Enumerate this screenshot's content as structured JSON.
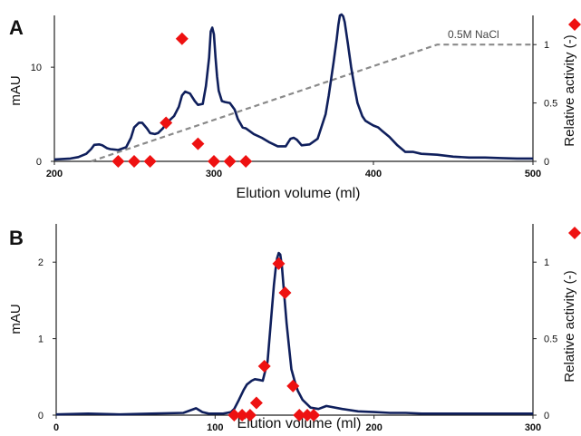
{
  "chart_data": [
    {
      "panel": "A",
      "type": "line",
      "xlabel": "Elution volume (ml)",
      "ylabel": "mAU",
      "y2label": "Relative activity (-)",
      "xlim": [
        200,
        500
      ],
      "xticks": [
        "200",
        "300",
        "400",
        "500"
      ],
      "ylim": [
        0,
        15.5
      ],
      "yticks": [
        "0",
        "10"
      ],
      "y2lim": [
        0,
        1.25
      ],
      "y2ticks": [
        "0",
        "0.5",
        "1"
      ],
      "annotation": "0.5M NaCl",
      "colors": {
        "trace": "#0f1f5c",
        "activity": "#ee1111",
        "gradient": "#8a8a8a"
      },
      "series": [
        {
          "kind": "absorbance-trace",
          "x": [
            200,
            210,
            215,
            220,
            223,
            225,
            228,
            230,
            233,
            235,
            240,
            245,
            248,
            250,
            253,
            255,
            258,
            260,
            263,
            265,
            268,
            270,
            273,
            275,
            278,
            280,
            282,
            285,
            288,
            290,
            293,
            295,
            297,
            298,
            299,
            300,
            301,
            302,
            303,
            305,
            307,
            310,
            313,
            315,
            318,
            320,
            325,
            330,
            335,
            340,
            345,
            348,
            350,
            352,
            355,
            360,
            365,
            370,
            372,
            375,
            377,
            378,
            379,
            380,
            381,
            382,
            384,
            386,
            388,
            390,
            393,
            395,
            398,
            400,
            403,
            405,
            410,
            415,
            420,
            425,
            430,
            440,
            450,
            460,
            470,
            480,
            490,
            500
          ],
          "y": [
            0.2,
            0.3,
            0.45,
            0.8,
            1.3,
            1.75,
            1.8,
            1.7,
            1.4,
            1.3,
            1.2,
            1.5,
            2.5,
            3.6,
            4.1,
            4.1,
            3.5,
            3.0,
            2.9,
            3.0,
            3.5,
            4.0,
            4.5,
            4.8,
            5.8,
            7.0,
            7.4,
            7.2,
            6.4,
            6.0,
            6.1,
            8.0,
            11.0,
            13.8,
            14.2,
            13.5,
            11.0,
            9.0,
            7.5,
            6.4,
            6.3,
            6.2,
            5.5,
            4.5,
            3.6,
            3.5,
            2.9,
            2.5,
            2.0,
            1.6,
            1.6,
            2.4,
            2.5,
            2.3,
            1.7,
            1.8,
            2.4,
            5.0,
            7.0,
            10.5,
            13.0,
            14.5,
            15.5,
            15.6,
            15.4,
            14.8,
            12.5,
            10.0,
            8.0,
            6.2,
            4.8,
            4.3,
            4.0,
            3.8,
            3.6,
            3.3,
            2.6,
            1.7,
            1.0,
            1.0,
            0.8,
            0.7,
            0.5,
            0.4,
            0.4,
            0.35,
            0.3,
            0.3
          ]
        },
        {
          "kind": "relative-activity",
          "x": [
            240,
            250,
            260,
            270,
            280,
            290,
            300,
            310,
            320
          ],
          "y": [
            0.0,
            0.0,
            0.0,
            0.33,
            1.05,
            0.15,
            0.0,
            0.0,
            0.0
          ]
        },
        {
          "kind": "salt-gradient",
          "x": [
            223,
            440,
            500
          ],
          "y": [
            0.0,
            1.0,
            1.0
          ]
        }
      ]
    },
    {
      "panel": "B",
      "type": "line",
      "xlabel": "Elution volume (ml)",
      "ylabel": "mAU",
      "y2label": "Relative activity (-)",
      "xlim": [
        0,
        300
      ],
      "xticks": [
        "0",
        "100",
        "200",
        "300"
      ],
      "ylim": [
        0,
        2.5
      ],
      "yticks": [
        "0",
        "1",
        "2"
      ],
      "y2lim": [
        0,
        1.25
      ],
      "y2ticks": [
        "0",
        "0.5",
        "1"
      ],
      "colors": {
        "trace": "#0f1f5c",
        "activity": "#ee1111"
      },
      "series": [
        {
          "kind": "absorbance-trace",
          "x": [
            0,
            20,
            40,
            60,
            80,
            88,
            92,
            96,
            100,
            105,
            110,
            112,
            115,
            118,
            120,
            123,
            125,
            128,
            130,
            133,
            135,
            137,
            138,
            139,
            140,
            141,
            142,
            143,
            145,
            147,
            148,
            150,
            152,
            155,
            160,
            165,
            170,
            180,
            190,
            200,
            210,
            220,
            230,
            240,
            250,
            260,
            270,
            280,
            290,
            300
          ],
          "y": [
            0.01,
            0.02,
            0.01,
            0.02,
            0.03,
            0.09,
            0.04,
            0.02,
            0.02,
            0.02,
            0.04,
            0.08,
            0.2,
            0.33,
            0.4,
            0.45,
            0.47,
            0.46,
            0.45,
            0.7,
            1.2,
            1.7,
            1.9,
            2.05,
            2.12,
            2.1,
            1.95,
            1.7,
            1.2,
            0.8,
            0.6,
            0.45,
            0.32,
            0.2,
            0.1,
            0.08,
            0.12,
            0.08,
            0.05,
            0.04,
            0.03,
            0.03,
            0.02,
            0.02,
            0.02,
            0.02,
            0.02,
            0.02,
            0.02,
            0.02
          ]
        },
        {
          "kind": "relative-activity",
          "x": [
            112,
            117,
            122,
            126,
            131,
            140,
            144,
            149,
            153,
            158,
            162
          ],
          "y": [
            0.0,
            0.0,
            0.0,
            0.08,
            0.32,
            0.99,
            0.8,
            0.19,
            0.0,
            0.0,
            0.0
          ]
        }
      ]
    }
  ]
}
